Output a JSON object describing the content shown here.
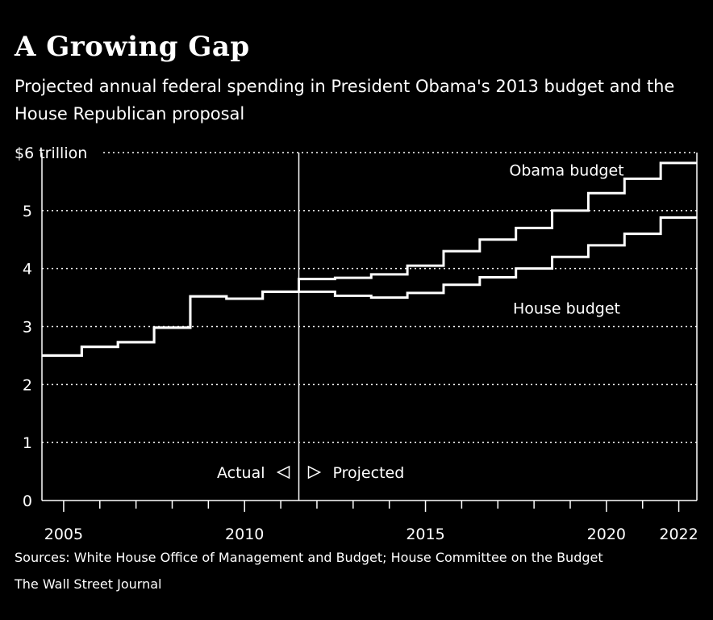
{
  "title": "A Growing Gap",
  "subtitle": "Projected annual federal spending in President Obama's 2013 budget and the House Republican proposal",
  "sources": "Sources: White House Office of Management and Budget; House Committee on the Budget",
  "publisher": "The Wall Street Journal",
  "colors": {
    "background": "#000000",
    "lines": "#ffffff",
    "grid": "#ffffff"
  },
  "chart_data": {
    "type": "line",
    "xlim": [
      2004.4,
      2022.5
    ],
    "ylim": [
      0,
      6
    ],
    "y_ticks": [
      {
        "value": 0,
        "label": "0"
      },
      {
        "value": 1,
        "label": "1"
      },
      {
        "value": 2,
        "label": "2"
      },
      {
        "value": 3,
        "label": "3"
      },
      {
        "value": 4,
        "label": "4"
      },
      {
        "value": 5,
        "label": "5"
      },
      {
        "value": 6,
        "label": "$6 trillion"
      }
    ],
    "x_ticks": [
      {
        "value": 2005,
        "label": "2005"
      },
      {
        "value": 2010,
        "label": "2010"
      },
      {
        "value": 2015,
        "label": "2015"
      },
      {
        "value": 2020,
        "label": "2020"
      },
      {
        "value": 2022,
        "label": "2022"
      }
    ],
    "minor_x_ticks": [
      2006,
      2007,
      2008,
      2009,
      2011,
      2012,
      2013,
      2014,
      2016,
      2017,
      2018,
      2019,
      2021
    ],
    "grid": "dotted horizontal",
    "divider_year": 2011.5,
    "divider_labels": {
      "left": "Actual",
      "right": "Projected"
    },
    "step": true,
    "series": [
      {
        "name": "Obama budget",
        "x": [
          2004.4,
          2005.5,
          2006.5,
          2007.5,
          2008.5,
          2009.5,
          2010.5,
          2011.5,
          2012.5,
          2013.5,
          2014.5,
          2015.5,
          2016.5,
          2017.5,
          2018.5,
          2019.5,
          2020.5,
          2021.5
        ],
        "values": [
          2.5,
          2.65,
          2.73,
          2.98,
          3.52,
          3.48,
          3.6,
          3.82,
          3.84,
          3.9,
          4.05,
          4.3,
          4.5,
          4.7,
          5.0,
          5.3,
          5.55,
          5.82
        ],
        "label_year": 2018.9,
        "label_value": 5.6
      },
      {
        "name": "House budget",
        "x": [
          2004.4,
          2005.5,
          2006.5,
          2007.5,
          2008.5,
          2009.5,
          2010.5,
          2011.5,
          2012.5,
          2013.5,
          2014.5,
          2015.5,
          2016.5,
          2017.5,
          2018.5,
          2019.5,
          2020.5,
          2021.5
        ],
        "values": [
          2.5,
          2.65,
          2.73,
          2.98,
          3.52,
          3.48,
          3.6,
          3.6,
          3.53,
          3.5,
          3.58,
          3.72,
          3.85,
          4.0,
          4.2,
          4.4,
          4.6,
          4.88
        ],
        "label_year": 2018.9,
        "label_value": 3.22
      }
    ]
  }
}
